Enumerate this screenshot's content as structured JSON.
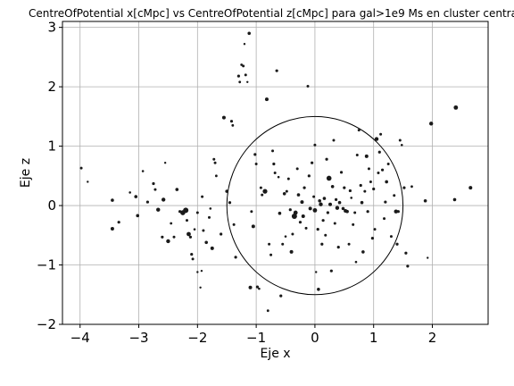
{
  "chart_data": {
    "type": "scatter",
    "title": "CentreOfPotential x[cMpc] vs CentreOfPotential z[cMpc] para gal>1e9 Ms en cluster centra",
    "xlabel": "Eje x",
    "ylabel": "Eje z",
    "xlim": [
      -4.3,
      2.95
    ],
    "ylim": [
      -2.0,
      3.1
    ],
    "xticks": [
      -4,
      -3,
      -2,
      -1,
      0,
      1,
      2
    ],
    "xtick_labels": [
      "−4",
      "−3",
      "−2",
      "−1",
      "0",
      "1",
      "2"
    ],
    "yticks": [
      -2,
      -1,
      0,
      1,
      2,
      3
    ],
    "ytick_labels": [
      "−2",
      "−1",
      "0",
      "1",
      "2",
      "3"
    ],
    "grid": true,
    "circle": {
      "center": [
        0,
        0
      ],
      "radius": 1.5
    },
    "marker_color": "#1a1a1a",
    "points": [
      [
        -3.98,
        0.63,
        1.5
      ],
      [
        -3.87,
        0.4,
        1.2
      ],
      [
        -3.45,
        0.09,
        1.8
      ],
      [
        -3.45,
        -0.39,
        2.0
      ],
      [
        -3.34,
        -0.28,
        1.6
      ],
      [
        -3.15,
        0.22,
        1.3
      ],
      [
        -3.05,
        0.15,
        1.8
      ],
      [
        -3.02,
        -0.17,
        1.8
      ],
      [
        -2.93,
        0.58,
        1.3
      ],
      [
        -2.85,
        0.06,
        1.6
      ],
      [
        -2.75,
        0.37,
        1.6
      ],
      [
        -2.72,
        0.27,
        1.5
      ],
      [
        -2.67,
        -0.07,
        2.2
      ],
      [
        -2.6,
        -0.53,
        1.6
      ],
      [
        -2.58,
        0.1,
        2.2
      ],
      [
        -2.55,
        0.72,
        1.2
      ],
      [
        -2.5,
        -0.6,
        2.2
      ],
      [
        -2.45,
        -0.3,
        1.4
      ],
      [
        -2.4,
        -0.53,
        1.5
      ],
      [
        -2.35,
        0.27,
        1.8
      ],
      [
        -2.3,
        -0.1,
        1.6
      ],
      [
        -2.25,
        -0.12,
        2.8
      ],
      [
        -2.2,
        -0.08,
        3.0
      ],
      [
        -2.18,
        -0.25,
        1.5
      ],
      [
        -2.15,
        -0.48,
        2.4
      ],
      [
        -2.12,
        -0.53,
        1.6
      ],
      [
        -2.1,
        -0.82,
        1.6
      ],
      [
        -2.08,
        -0.9,
        1.5
      ],
      [
        -2.05,
        -0.4,
        1.3
      ],
      [
        -2.0,
        -0.12,
        1.5
      ],
      [
        -2.0,
        -1.12,
        1.2
      ],
      [
        -1.95,
        -1.38,
        1.2
      ],
      [
        -1.93,
        -1.1,
        1.2
      ],
      [
        -1.92,
        0.15,
        1.5
      ],
      [
        -1.9,
        -0.42,
        1.5
      ],
      [
        -1.85,
        -0.62,
        1.8
      ],
      [
        -1.8,
        -0.2,
        1.5
      ],
      [
        -1.78,
        -0.05,
        1.3
      ],
      [
        -1.75,
        -0.72,
        2.0
      ],
      [
        -1.72,
        0.78,
        1.5
      ],
      [
        -1.7,
        0.72,
        1.5
      ],
      [
        -1.68,
        0.5,
        1.4
      ],
      [
        -1.6,
        -0.48,
        1.6
      ],
      [
        -1.55,
        1.48,
        2.0
      ],
      [
        -1.5,
        0.24,
        1.8
      ],
      [
        -1.45,
        0.05,
        1.6
      ],
      [
        -1.42,
        1.42,
        1.6
      ],
      [
        -1.4,
        1.35,
        1.4
      ],
      [
        -1.38,
        -0.32,
        1.5
      ],
      [
        -1.35,
        -0.87,
        1.6
      ],
      [
        -1.3,
        2.18,
        1.6
      ],
      [
        -1.28,
        2.08,
        1.4
      ],
      [
        -1.25,
        2.37,
        1.4
      ],
      [
        -1.22,
        2.35,
        1.5
      ],
      [
        -1.2,
        2.72,
        1.2
      ],
      [
        -1.18,
        2.2,
        1.5
      ],
      [
        -1.15,
        2.08,
        1.2
      ],
      [
        -1.12,
        2.9,
        1.8
      ],
      [
        -1.1,
        -1.38,
        2.0
      ],
      [
        -1.08,
        -0.1,
        1.5
      ],
      [
        -1.05,
        -0.35,
        2.0
      ],
      [
        -1.02,
        0.86,
        1.6
      ],
      [
        -1.0,
        0.7,
        1.5
      ],
      [
        -0.98,
        -1.37,
        1.6
      ],
      [
        -0.95,
        -1.4,
        1.3
      ],
      [
        -0.92,
        0.3,
        1.5
      ],
      [
        -0.9,
        0.18,
        1.5
      ],
      [
        -0.85,
        0.24,
        2.6
      ],
      [
        -0.82,
        1.79,
        2.0
      ],
      [
        -0.8,
        -1.77,
        1.4
      ],
      [
        -0.78,
        -0.65,
        1.5
      ],
      [
        -0.75,
        -0.83,
        1.5
      ],
      [
        -0.72,
        0.92,
        1.5
      ],
      [
        -0.7,
        0.7,
        1.6
      ],
      [
        -0.68,
        0.55,
        1.5
      ],
      [
        -0.65,
        2.27,
        1.6
      ],
      [
        -0.62,
        0.48,
        1.3
      ],
      [
        -0.6,
        -0.13,
        1.8
      ],
      [
        -0.58,
        -1.52,
        1.6
      ],
      [
        -0.55,
        -0.65,
        1.5
      ],
      [
        -0.52,
        0.2,
        1.8
      ],
      [
        -0.5,
        -0.52,
        1.3
      ],
      [
        -0.48,
        0.24,
        1.5
      ],
      [
        -0.45,
        0.45,
        1.5
      ],
      [
        -0.42,
        -0.07,
        1.6
      ],
      [
        -0.4,
        -0.78,
        2.0
      ],
      [
        -0.38,
        -0.48,
        1.5
      ],
      [
        -0.35,
        -0.18,
        3.0
      ],
      [
        -0.33,
        -0.12,
        2.4
      ],
      [
        -0.3,
        0.62,
        1.5
      ],
      [
        -0.28,
        0.18,
        1.8
      ],
      [
        -0.25,
        -0.28,
        1.6
      ],
      [
        -0.22,
        0.06,
        2.0
      ],
      [
        -0.2,
        -0.18,
        2.0
      ],
      [
        -0.18,
        0.3,
        1.6
      ],
      [
        -0.15,
        -0.38,
        1.5
      ],
      [
        -0.12,
        2.01,
        1.5
      ],
      [
        -0.1,
        0.5,
        1.6
      ],
      [
        -0.08,
        -0.05,
        2.0
      ],
      [
        -0.05,
        0.72,
        1.6
      ],
      [
        -0.02,
        0.15,
        1.5
      ],
      [
        0.0,
        1.02,
        1.5
      ],
      [
        0.0,
        -0.08,
        2.4
      ],
      [
        0.02,
        -1.12,
        1.2
      ],
      [
        0.05,
        -0.4,
        1.6
      ],
      [
        0.06,
        -1.41,
        1.8
      ],
      [
        0.08,
        0.08,
        1.8
      ],
      [
        0.1,
        0.02,
        2.2
      ],
      [
        0.12,
        -0.65,
        1.6
      ],
      [
        0.14,
        -0.25,
        1.6
      ],
      [
        0.16,
        0.12,
        1.8
      ],
      [
        0.18,
        -0.5,
        1.5
      ],
      [
        0.2,
        0.78,
        1.6
      ],
      [
        0.22,
        -0.12,
        1.6
      ],
      [
        0.24,
        0.46,
        2.8
      ],
      [
        0.26,
        0.02,
        2.0
      ],
      [
        0.28,
        -1.1,
        1.6
      ],
      [
        0.3,
        0.32,
        1.8
      ],
      [
        0.32,
        1.1,
        1.5
      ],
      [
        0.34,
        -0.3,
        1.5
      ],
      [
        0.36,
        0.1,
        1.6
      ],
      [
        0.38,
        -0.04,
        2.2
      ],
      [
        0.4,
        -0.7,
        1.6
      ],
      [
        0.42,
        0.05,
        1.8
      ],
      [
        0.45,
        0.56,
        1.6
      ],
      [
        0.48,
        -0.05,
        1.8
      ],
      [
        0.5,
        0.3,
        1.6
      ],
      [
        0.52,
        -0.09,
        2.0
      ],
      [
        0.55,
        -0.1,
        1.8
      ],
      [
        0.58,
        -0.65,
        1.5
      ],
      [
        0.6,
        0.25,
        1.6
      ],
      [
        0.62,
        0.13,
        1.3
      ],
      [
        0.65,
        -0.32,
        1.5
      ],
      [
        0.68,
        -0.12,
        1.5
      ],
      [
        0.7,
        -0.95,
        1.3
      ],
      [
        0.72,
        0.85,
        1.5
      ],
      [
        0.75,
        1.27,
        1.5
      ],
      [
        0.78,
        0.34,
        1.6
      ],
      [
        0.8,
        0.05,
        1.8
      ],
      [
        0.82,
        -0.78,
        1.8
      ],
      [
        0.85,
        0.24,
        1.5
      ],
      [
        0.88,
        0.83,
        2.0
      ],
      [
        0.9,
        -0.1,
        1.6
      ],
      [
        0.92,
        0.62,
        1.5
      ],
      [
        0.95,
        0.4,
        1.5
      ],
      [
        0.98,
        -0.55,
        1.6
      ],
      [
        1.0,
        0.28,
        1.6
      ],
      [
        1.02,
        -0.4,
        1.5
      ],
      [
        1.05,
        1.12,
        2.2
      ],
      [
        1.08,
        0.55,
        1.5
      ],
      [
        1.1,
        0.9,
        1.6
      ],
      [
        1.12,
        1.2,
        1.5
      ],
      [
        1.15,
        0.6,
        1.6
      ],
      [
        1.18,
        -0.22,
        1.5
      ],
      [
        1.2,
        0.06,
        1.6
      ],
      [
        1.22,
        0.4,
        1.8
      ],
      [
        1.25,
        0.7,
        1.5
      ],
      [
        1.3,
        -0.52,
        1.5
      ],
      [
        1.35,
        0.17,
        1.5
      ],
      [
        1.38,
        -0.1,
        2.2
      ],
      [
        1.4,
        -0.65,
        1.6
      ],
      [
        1.42,
        -0.1,
        1.6
      ],
      [
        1.45,
        1.1,
        1.5
      ],
      [
        1.48,
        1.02,
        1.3
      ],
      [
        1.52,
        0.3,
        1.6
      ],
      [
        1.55,
        -0.8,
        1.6
      ],
      [
        1.58,
        -1.02,
        1.6
      ],
      [
        1.65,
        0.32,
        1.4
      ],
      [
        1.88,
        0.08,
        1.8
      ],
      [
        1.92,
        -0.88,
        1.2
      ],
      [
        1.98,
        1.38,
        2.2
      ],
      [
        2.38,
        0.1,
        1.8
      ],
      [
        2.4,
        1.65,
        2.4
      ],
      [
        2.65,
        0.3,
        2.0
      ]
    ]
  }
}
